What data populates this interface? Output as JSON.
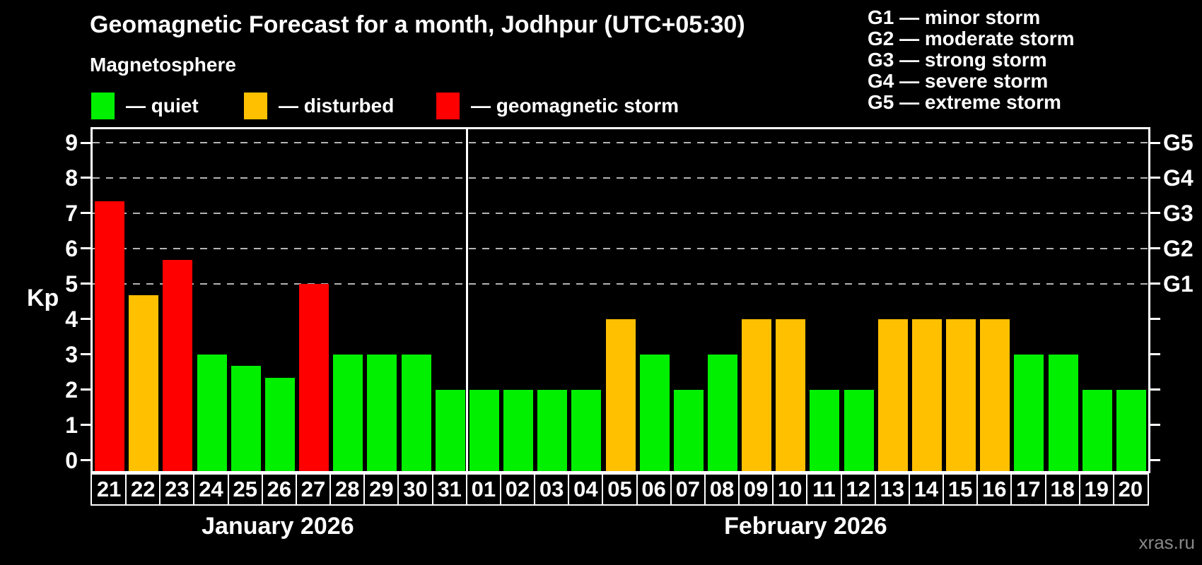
{
  "header": {
    "title": "Geomagnetic Forecast for a month, Jodhpur (UTC+05:30)",
    "subtitle": "Magnetosphere"
  },
  "color_legend": {
    "items": [
      {
        "state": "quiet",
        "label": "— quiet",
        "color": "#00f000",
        "x": 0
      },
      {
        "state": "disturbed",
        "label": "— disturbed",
        "color": "#ffc000",
        "x": 216
      },
      {
        "state": "storm",
        "label": "— geomagnetic storm",
        "color": "#ff0000",
        "x": 488
      }
    ]
  },
  "g_legend": {
    "lines": [
      "G1 — minor storm",
      "G2 — moderate storm",
      "G3 — strong storm",
      "G4 — severe storm",
      "G5 — extreme storm"
    ]
  },
  "watermark": "xras.ru",
  "chart_data": {
    "type": "bar",
    "title": "Geomagnetic Forecast for a month, Jodhpur (UTC+05:30)",
    "ylabel": "Kp",
    "ylim": [
      -0.31,
      9.39
    ],
    "y_ticks": [
      0,
      1,
      2,
      3,
      4,
      5,
      6,
      7,
      8,
      9
    ],
    "grid_kp": [
      5,
      6,
      7,
      8,
      9
    ],
    "right_axis_labels": [
      {
        "label": "G1",
        "kp": 5
      },
      {
        "label": "G2",
        "kp": 6
      },
      {
        "label": "G3",
        "kp": 7
      },
      {
        "label": "G4",
        "kp": 8
      },
      {
        "label": "G5",
        "kp": 9
      }
    ],
    "legend_position": "top",
    "grid": "dashed horizontal at Kp 5-9 only",
    "months": [
      {
        "label": "January 2026",
        "days": 11
      },
      {
        "label": "February 2026",
        "days": 20
      }
    ],
    "colors": {
      "quiet": "#00f000",
      "disturbed": "#ffc000",
      "storm": "#ff0000"
    },
    "bars": [
      {
        "day": "21",
        "kp": 7.33,
        "state": "storm"
      },
      {
        "day": "22",
        "kp": 4.67,
        "state": "disturbed"
      },
      {
        "day": "23",
        "kp": 5.67,
        "state": "storm"
      },
      {
        "day": "24",
        "kp": 3.0,
        "state": "quiet"
      },
      {
        "day": "25",
        "kp": 2.67,
        "state": "quiet"
      },
      {
        "day": "26",
        "kp": 2.33,
        "state": "quiet"
      },
      {
        "day": "27",
        "kp": 5.0,
        "state": "storm"
      },
      {
        "day": "28",
        "kp": 3.0,
        "state": "quiet"
      },
      {
        "day": "29",
        "kp": 3.0,
        "state": "quiet"
      },
      {
        "day": "30",
        "kp": 3.0,
        "state": "quiet"
      },
      {
        "day": "31",
        "kp": 2.0,
        "state": "quiet"
      },
      {
        "day": "01",
        "kp": 2.0,
        "state": "quiet"
      },
      {
        "day": "02",
        "kp": 2.0,
        "state": "quiet"
      },
      {
        "day": "03",
        "kp": 2.0,
        "state": "quiet"
      },
      {
        "day": "04",
        "kp": 2.0,
        "state": "quiet"
      },
      {
        "day": "05",
        "kp": 4.0,
        "state": "disturbed"
      },
      {
        "day": "06",
        "kp": 3.0,
        "state": "quiet"
      },
      {
        "day": "07",
        "kp": 2.0,
        "state": "quiet"
      },
      {
        "day": "08",
        "kp": 3.0,
        "state": "quiet"
      },
      {
        "day": "09",
        "kp": 4.0,
        "state": "disturbed"
      },
      {
        "day": "10",
        "kp": 4.0,
        "state": "disturbed"
      },
      {
        "day": "11",
        "kp": 2.0,
        "state": "quiet"
      },
      {
        "day": "12",
        "kp": 2.0,
        "state": "quiet"
      },
      {
        "day": "13",
        "kp": 4.0,
        "state": "disturbed"
      },
      {
        "day": "14",
        "kp": 4.0,
        "state": "disturbed"
      },
      {
        "day": "15",
        "kp": 4.0,
        "state": "disturbed"
      },
      {
        "day": "16",
        "kp": 4.0,
        "state": "disturbed"
      },
      {
        "day": "17",
        "kp": 3.0,
        "state": "quiet"
      },
      {
        "day": "18",
        "kp": 3.0,
        "state": "quiet"
      },
      {
        "day": "19",
        "kp": 2.0,
        "state": "quiet"
      },
      {
        "day": "20",
        "kp": 2.0,
        "state": "quiet"
      }
    ]
  }
}
